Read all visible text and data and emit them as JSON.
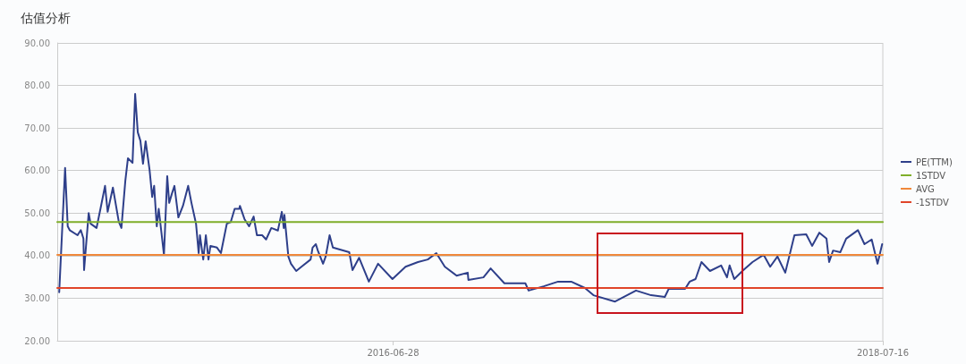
{
  "chart_data": {
    "type": "line",
    "title": "估值分析",
    "xlim": [
      "2015-02-01",
      "2018-07-16"
    ],
    "xticks": [
      "2016-06-28",
      "2018-07-16"
    ],
    "ylim": [
      20,
      90
    ],
    "yticks": [
      {
        "value": 20,
        "label": "20.00"
      },
      {
        "value": 30,
        "label": "30.00"
      },
      {
        "value": 40,
        "label": "40.00"
      },
      {
        "value": 50,
        "label": "50.00"
      },
      {
        "value": 60,
        "label": "60.00"
      },
      {
        "value": 70,
        "label": "70.00"
      },
      {
        "value": 80,
        "label": "80.00"
      },
      {
        "value": 90,
        "label": "90.00"
      }
    ],
    "grid": "y",
    "legend": "right",
    "marker": "none",
    "line_style": "solid",
    "series": [
      {
        "name": "PE(TTM)",
        "color": "#2e3f8a",
        "x": [
          "2015-02-04",
          "2015-02-13",
          "2015-02-17",
          "2015-02-20",
          "2015-03-04",
          "2015-03-09",
          "2015-03-13",
          "2015-03-14",
          "2015-03-21",
          "2015-03-24",
          "2015-04-02",
          "2015-04-08",
          "2015-04-15",
          "2015-04-19",
          "2015-04-27",
          "2015-05-06",
          "2015-05-10",
          "2015-05-16",
          "2015-05-20",
          "2015-05-27",
          "2015-05-31",
          "2015-06-04",
          "2015-06-08",
          "2015-06-12",
          "2015-06-16",
          "2015-06-22",
          "2015-06-26",
          "2015-06-29",
          "2015-07-03",
          "2015-07-06",
          "2015-07-14",
          "2015-07-19",
          "2015-07-22",
          "2015-07-26",
          "2015-07-30",
          "2015-08-05",
          "2015-08-12",
          "2015-08-20",
          "2015-08-25",
          "2015-09-01",
          "2015-09-05",
          "2015-09-07",
          "2015-09-12",
          "2015-09-16",
          "2015-09-20",
          "2015-09-23",
          "2015-10-03",
          "2015-10-09",
          "2015-10-18",
          "2015-10-24",
          "2015-10-30",
          "2015-11-06",
          "2015-11-07",
          "2015-11-14",
          "2015-11-21",
          "2015-11-28",
          "2015-12-03",
          "2015-12-11",
          "2015-12-17",
          "2015-12-25",
          "2016-01-04",
          "2016-01-10",
          "2016-01-13",
          "2016-01-14",
          "2016-01-20",
          "2016-01-24",
          "2016-02-01",
          "2016-02-09",
          "2016-02-23",
          "2016-02-26",
          "2016-03-02",
          "2016-03-05",
          "2016-03-13",
          "2016-03-17",
          "2016-03-23",
          "2016-03-28",
          "2016-04-22",
          "2016-04-27",
          "2016-05-07",
          "2016-05-22",
          "2016-06-05",
          "2016-06-27",
          "2016-07-17",
          "2016-08-05",
          "2016-08-20",
          "2016-09-02",
          "2016-09-15",
          "2016-10-03",
          "2016-10-20",
          "2016-10-21",
          "2016-11-13",
          "2016-11-24",
          "2016-12-15",
          "2017-01-16",
          "2017-01-21",
          "2017-02-13",
          "2017-03-07",
          "2017-03-27",
          "2017-04-17",
          "2017-04-30",
          "2017-06-02",
          "2017-07-04",
          "2017-07-27",
          "2017-08-17",
          "2017-08-23",
          "2017-09-17",
          "2017-09-24",
          "2017-10-03",
          "2017-10-12",
          "2017-10-25",
          "2017-11-11",
          "2017-11-20",
          "2017-11-24",
          "2017-12-01",
          "2017-12-15",
          "2017-12-29",
          "2018-01-15",
          "2018-01-25",
          "2018-02-05",
          "2018-02-17",
          "2018-03-03",
          "2018-03-21",
          "2018-03-30",
          "2018-04-10",
          "2018-04-21",
          "2018-04-25",
          "2018-05-01",
          "2018-05-12",
          "2018-05-21",
          "2018-06-08",
          "2018-06-18",
          "2018-06-29",
          "2018-07-08",
          "2018-07-15"
        ],
        "values": [
          31.4,
          60.6,
          46.9,
          46,
          44.8,
          46,
          44,
          36.6,
          50,
          47.5,
          46.5,
          51,
          56.4,
          50.3,
          56,
          48,
          46.5,
          57.6,
          62.9,
          61.8,
          78,
          69,
          67,
          61.6,
          66.9,
          60.2,
          53.8,
          56.4,
          46.9,
          51,
          40.2,
          58.7,
          52.4,
          54.5,
          56.4,
          49,
          51.7,
          56.4,
          52.4,
          47.5,
          40.6,
          44.8,
          39.1,
          44.8,
          39.1,
          42.3,
          41.9,
          40.6,
          47.5,
          47.9,
          51,
          51,
          51.7,
          48.6,
          46.9,
          49.2,
          44.8,
          44.8,
          43.8,
          46.5,
          45.9,
          50.3,
          46.5,
          49.6,
          39.8,
          38.1,
          36.4,
          37.4,
          39.1,
          41.9,
          42.7,
          41.2,
          38.1,
          39.8,
          44.8,
          41.9,
          40.8,
          36.6,
          39.5,
          33.9,
          38.1,
          34.5,
          37.4,
          38.5,
          39.1,
          40.6,
          37.4,
          35.3,
          36,
          34.3,
          34.9,
          37,
          33.5,
          33.5,
          31.8,
          32.8,
          33.9,
          33.9,
          32.4,
          30.7,
          29.2,
          31.8,
          30.7,
          30.3,
          32.2,
          32.2,
          33.9,
          34.5,
          38.5,
          36.4,
          37.7,
          34.9,
          37.7,
          34.5,
          36.6,
          38.5,
          40.2,
          37.4,
          39.8,
          36,
          44.8,
          45,
          42.3,
          45.4,
          44,
          38.5,
          41.2,
          40.8,
          44,
          46,
          42.7,
          43.8,
          38.1,
          42.7
        ]
      },
      {
        "name": "1STDV",
        "color": "#7fae2a",
        "x": [
          "2015-02-01",
          "2018-07-16"
        ],
        "values": [
          47.9,
          47.9
        ]
      },
      {
        "name": "AVG",
        "color": "#f0883a",
        "x": [
          "2015-02-01",
          "2018-07-16"
        ],
        "values": [
          40.2,
          40.2
        ]
      },
      {
        "name": "-1STDV",
        "color": "#e0452a",
        "x": [
          "2015-02-01",
          "2018-07-16"
        ],
        "values": [
          32.4,
          32.4
        ]
      }
    ]
  }
}
